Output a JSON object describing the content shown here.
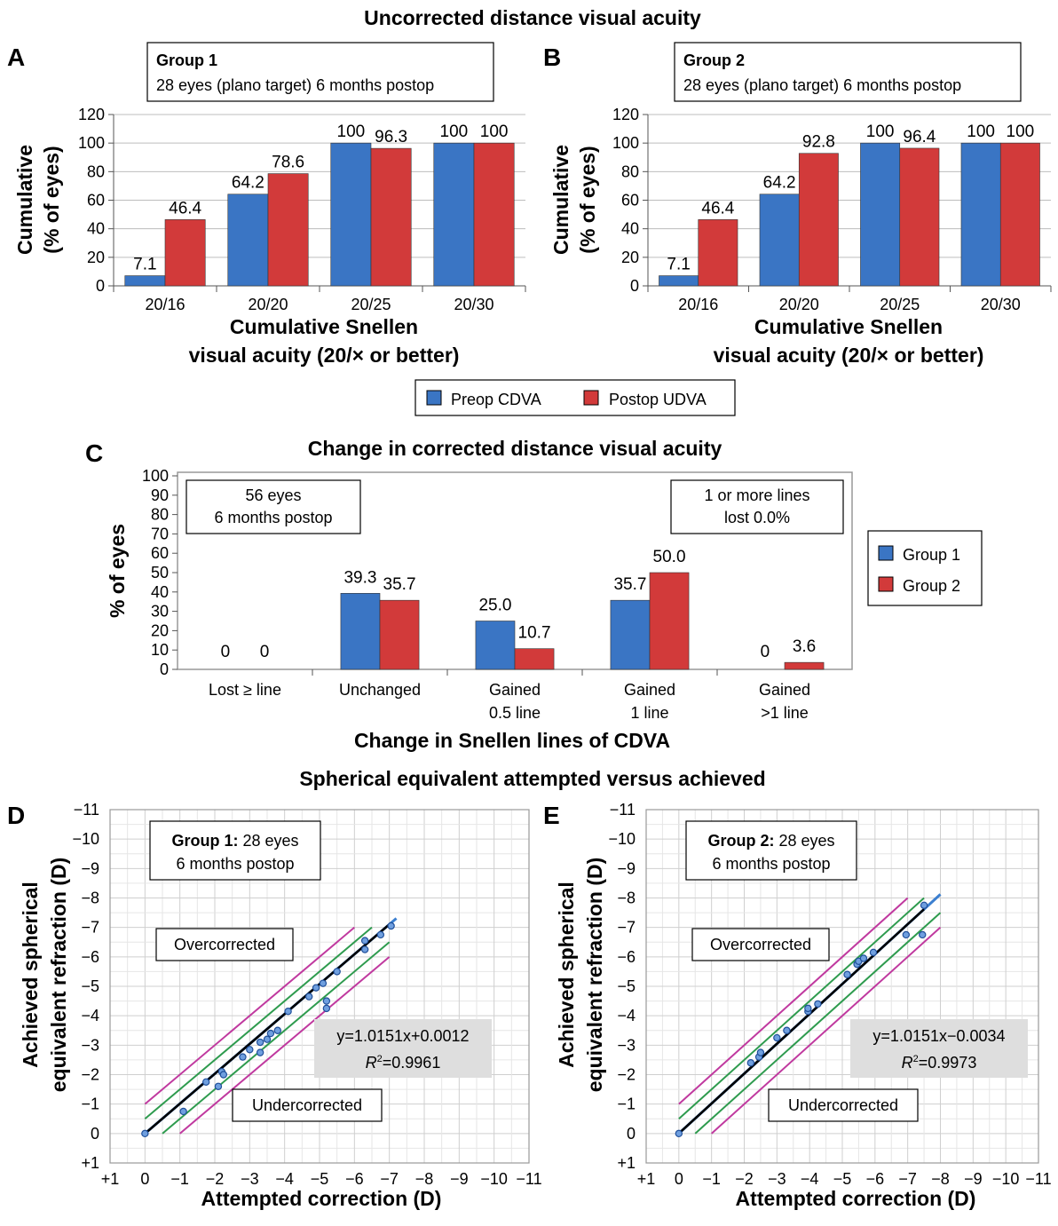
{
  "section_titles": {
    "ucva": "Uncorrected distance visual acuity",
    "cdva": "Change in corrected distance visual acuity",
    "se": "Spherical equivalent attempted versus achieved"
  },
  "legend_ab": {
    "s1": "Preop CDVA",
    "s2": "Postop UDVA"
  },
  "legend_c": {
    "s1": "Group 1",
    "s2": "Group 2"
  },
  "colors": {
    "blue": "#3a75c4",
    "red": "#d23a3a",
    "magenta": "#c0399f",
    "green": "#2e9b4e",
    "fitline": "#000000",
    "fitline2": "#3b7fd0"
  },
  "chart_data": [
    {
      "panel": "A",
      "type": "bar",
      "box_title": "Group 1",
      "box_sub": "28 eyes (plano target) 6 months postop",
      "ylabel_1": "Cumulative",
      "ylabel_2": "(% of eyes)",
      "xlabel_1": "Cumulative Snellen",
      "xlabel_2": "visual acuity (20/× or better)",
      "ylim": [
        0,
        120
      ],
      "yticks": [
        "0",
        "20",
        "40",
        "60",
        "80",
        "100",
        "120"
      ],
      "categories": [
        "20/16",
        "20/20",
        "20/25",
        "20/30"
      ],
      "series": [
        {
          "name": "Preop CDVA",
          "values": [
            7.1,
            64.2,
            100,
            100
          ],
          "labels": [
            "7.1",
            "64.2",
            "100",
            "100"
          ]
        },
        {
          "name": "Postop UDVA",
          "values": [
            46.4,
            78.6,
            96.3,
            100
          ],
          "labels": [
            "46.4",
            "78.6",
            "96.3",
            "100"
          ]
        }
      ]
    },
    {
      "panel": "B",
      "type": "bar",
      "box_title": "Group 2",
      "box_sub": "28 eyes (plano target) 6 months postop",
      "ylabel_1": "Cumulative",
      "ylabel_2": "(% of eyes)",
      "xlabel_1": "Cumulative Snellen",
      "xlabel_2": "visual acuity (20/× or better)",
      "ylim": [
        0,
        120
      ],
      "yticks": [
        "0",
        "20",
        "40",
        "60",
        "80",
        "100",
        "120"
      ],
      "categories": [
        "20/16",
        "20/20",
        "20/25",
        "20/30"
      ],
      "series": [
        {
          "name": "Preop CDVA",
          "values": [
            7.1,
            64.2,
            100,
            100
          ],
          "labels": [
            "7.1",
            "64.2",
            "100",
            "100"
          ]
        },
        {
          "name": "Postop UDVA",
          "values": [
            46.4,
            92.8,
            96.4,
            100
          ],
          "labels": [
            "46.4",
            "92.8",
            "96.4",
            "100"
          ]
        }
      ]
    },
    {
      "panel": "C",
      "type": "bar",
      "box_left_1": "56 eyes",
      "box_left_2": "6 months postop",
      "box_right_1": "1 or more lines",
      "box_right_2": "lost 0.0%",
      "ylabel": "% of eyes",
      "xlabel": "Change in Snellen lines of CDVA",
      "ylim": [
        0,
        100
      ],
      "yticks": [
        "0",
        "10",
        "20",
        "30",
        "40",
        "50",
        "60",
        "70",
        "80",
        "90",
        "100"
      ],
      "categories": [
        [
          "Lost ≥ line"
        ],
        [
          "Unchanged"
        ],
        [
          "Gained",
          "0.5 line"
        ],
        [
          "Gained",
          "1 line"
        ],
        [
          "Gained",
          ">1 line"
        ]
      ],
      "series": [
        {
          "name": "Group 1",
          "values": [
            0,
            39.3,
            25.0,
            35.7,
            0
          ],
          "labels": [
            "0",
            "39.3",
            "25.0",
            "35.7",
            "0"
          ]
        },
        {
          "name": "Group 2",
          "values": [
            0,
            35.7,
            10.7,
            50.0,
            3.6
          ],
          "labels": [
            "0",
            "35.7",
            "10.7",
            "50.0",
            "3.6"
          ]
        }
      ]
    },
    {
      "panel": "D",
      "type": "scatter",
      "box_bold": "Group 1:",
      "box_rest": " 28 eyes",
      "box_line2": "6 months postop",
      "over_label": "Overcorrected",
      "under_label": "Undercorrected",
      "eq_line1": "y=1.0151x+0.0012",
      "eq_r": "R",
      "eq_sup": "2",
      "eq_val": "=0.9961",
      "ylabel_1": "Achieved spherical",
      "ylabel_2": "equivalent refraction (D)",
      "xlabel": "Attempted correction (D)",
      "xlim": [
        1,
        -11
      ],
      "ylim": [
        1,
        -11
      ],
      "xticks": [
        "+1",
        "0",
        "−1",
        "−2",
        "−3",
        "−4",
        "−5",
        "−6",
        "−7",
        "−8",
        "−9",
        "−10",
        "−11"
      ],
      "yticks": [
        "+1",
        "0",
        "−1",
        "−2",
        "−3",
        "−4",
        "−5",
        "−6",
        "−7",
        "−8",
        "−9",
        "−10",
        "−11"
      ],
      "fit": {
        "slope": 1.0151,
        "intercept": 0.0012,
        "x_range": [
          0,
          -7.2
        ]
      },
      "points": [
        {
          "x": 0,
          "y": 0
        },
        {
          "x": -1.1,
          "y": -0.75
        },
        {
          "x": -1.75,
          "y": -1.75
        },
        {
          "x": -2.1,
          "y": -1.6
        },
        {
          "x": -2.2,
          "y": -2.1
        },
        {
          "x": -2.25,
          "y": -2.0
        },
        {
          "x": -2.8,
          "y": -2.6
        },
        {
          "x": -3.0,
          "y": -2.85
        },
        {
          "x": -3.3,
          "y": -3.1
        },
        {
          "x": -3.3,
          "y": -2.75
        },
        {
          "x": -3.5,
          "y": -3.2
        },
        {
          "x": -3.6,
          "y": -3.4
        },
        {
          "x": -3.8,
          "y": -3.5
        },
        {
          "x": -4.1,
          "y": -4.15
        },
        {
          "x": -4.7,
          "y": -4.65
        },
        {
          "x": -4.9,
          "y": -4.95
        },
        {
          "x": -5.1,
          "y": -5.1
        },
        {
          "x": -5.2,
          "y": -4.5
        },
        {
          "x": -5.2,
          "y": -4.25
        },
        {
          "x": -5.5,
          "y": -5.5
        },
        {
          "x": -6.3,
          "y": -6.55
        },
        {
          "x": -6.3,
          "y": -6.25
        },
        {
          "x": -6.75,
          "y": -6.75
        },
        {
          "x": -7.05,
          "y": -7.05
        }
      ]
    },
    {
      "panel": "E",
      "type": "scatter",
      "box_bold": "Group 2:",
      "box_rest": " 28 eyes",
      "box_line2": "6 months postop",
      "over_label": "Overcorrected",
      "under_label": "Undercorrected",
      "eq_line1": "y=1.0151x−0.0034",
      "eq_r": "R",
      "eq_sup": "2",
      "eq_val": "=0.9973",
      "ylabel_1": "Achieved spherical",
      "ylabel_2": "equivalent refraction (D)",
      "xlabel": "Attempted correction (D)",
      "xlim": [
        1,
        -11
      ],
      "ylim": [
        1,
        -11
      ],
      "xticks": [
        "+1",
        "0",
        "−1",
        "−2",
        "−3",
        "−4",
        "−5",
        "−6",
        "−7",
        "−8",
        "−9",
        "−10",
        "−11"
      ],
      "yticks": [
        "+1",
        "0",
        "−1",
        "−2",
        "−3",
        "−4",
        "−5",
        "−6",
        "−7",
        "−8",
        "−9",
        "−10",
        "−11"
      ],
      "fit": {
        "slope": 1.0151,
        "intercept": -0.0034,
        "x_range": [
          0,
          -8
        ]
      },
      "points": [
        {
          "x": 0,
          "y": 0
        },
        {
          "x": -2.2,
          "y": -2.4
        },
        {
          "x": -2.45,
          "y": -2.6
        },
        {
          "x": -2.5,
          "y": -2.75
        },
        {
          "x": -3.0,
          "y": -3.25
        },
        {
          "x": -3.3,
          "y": -3.5
        },
        {
          "x": -3.95,
          "y": -4.15
        },
        {
          "x": -3.95,
          "y": -4.25
        },
        {
          "x": -4.25,
          "y": -4.4
        },
        {
          "x": -5.15,
          "y": -5.4
        },
        {
          "x": -5.45,
          "y": -5.75
        },
        {
          "x": -5.5,
          "y": -5.85
        },
        {
          "x": -5.65,
          "y": -5.95
        },
        {
          "x": -5.95,
          "y": -6.15
        },
        {
          "x": -6.95,
          "y": -6.75
        },
        {
          "x": -7.45,
          "y": -6.75
        },
        {
          "x": -7.5,
          "y": -7.75
        }
      ]
    }
  ]
}
